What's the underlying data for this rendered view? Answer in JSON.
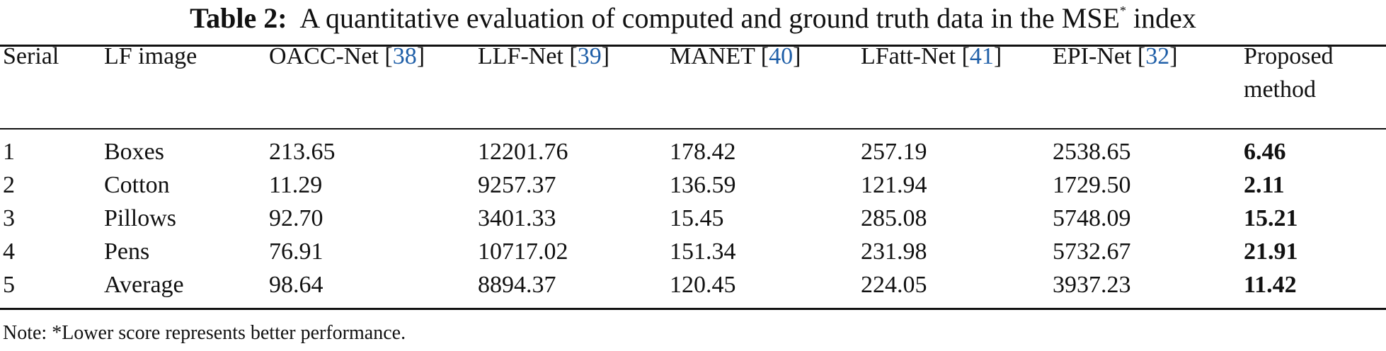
{
  "caption": {
    "label": "Table 2:",
    "text_before_sup": "A quantitative evaluation of computed and ground truth data in the MSE",
    "sup": "*",
    "text_after_sup": " index"
  },
  "table": {
    "headers": [
      {
        "text": "Serial",
        "ref": ""
      },
      {
        "text": "LF image",
        "ref": ""
      },
      {
        "text": "OACC-Net [",
        "ref": "38",
        "close": "]"
      },
      {
        "text": "LLF-Net [",
        "ref": "39",
        "close": "]"
      },
      {
        "text": "MANET [",
        "ref": "40",
        "close": "]"
      },
      {
        "text": "LFatt-Net [",
        "ref": "41",
        "close": "]"
      },
      {
        "text": "EPI-Net [",
        "ref": "32",
        "close": "]"
      },
      {
        "text": "Proposed",
        "line2": "method",
        "ref": ""
      }
    ],
    "rows": [
      {
        "serial": "1",
        "image": "Boxes",
        "oacc": "213.65",
        "llf": "12201.76",
        "manet": "178.42",
        "lfatt": "257.19",
        "epi": "2538.65",
        "proposed": "6.46"
      },
      {
        "serial": "2",
        "image": "Cotton",
        "oacc": "11.29",
        "llf": "9257.37",
        "manet": "136.59",
        "lfatt": "121.94",
        "epi": "1729.50",
        "proposed": "2.11"
      },
      {
        "serial": "3",
        "image": "Pillows",
        "oacc": "92.70",
        "llf": "3401.33",
        "manet": "15.45",
        "lfatt": "285.08",
        "epi": "5748.09",
        "proposed": "15.21"
      },
      {
        "serial": "4",
        "image": "Pens",
        "oacc": "76.91",
        "llf": "10717.02",
        "manet": "151.34",
        "lfatt": "231.98",
        "epi": "5732.67",
        "proposed": "21.91"
      },
      {
        "serial": "5",
        "image": "Average",
        "oacc": "98.64",
        "llf": "8894.37",
        "manet": "120.45",
        "lfatt": "224.05",
        "epi": "3937.23",
        "proposed": "11.42"
      }
    ]
  },
  "note": "Note: *Lower score represents better performance."
}
